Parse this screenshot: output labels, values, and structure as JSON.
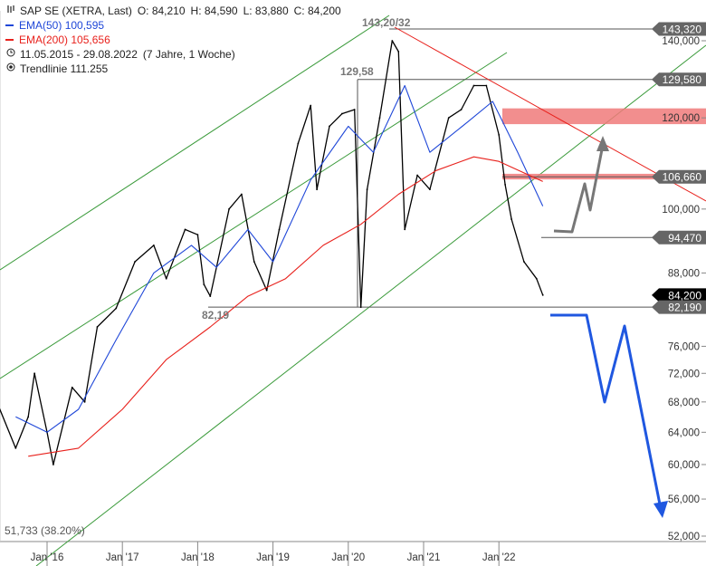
{
  "legend": {
    "title": "SAP SE (XETRA, Last)",
    "open": "O: 84,210",
    "high": "H: 84,590",
    "low": "L: 83,880",
    "close": "C: 84,200",
    "ema50_label": "EMA(50)",
    "ema50_value": "100,595",
    "ema200_label": "EMA(200)",
    "ema200_value": "105,656",
    "range": "11.05.2015 - 29.08.2022",
    "range_span": "(7 Jahre, 1 Woche)",
    "trend_label": "Trendlinie",
    "trend_value": "111.255",
    "ema50_color": "#1f47d8",
    "ema200_color": "#e8211c",
    "range_icon": "clock-icon",
    "trend_icon": "target-icon"
  },
  "chart_data": {
    "type": "line",
    "x_ticks": [
      "Jan '16",
      "Jan '17",
      "Jan '18",
      "Jan '19",
      "Jan '20",
      "Jan '21",
      "Jan '22"
    ],
    "y_ticks": [
      "140,000",
      "120,000",
      "100,000",
      "88,000",
      "76,000",
      "72,000",
      "68,000",
      "64,000",
      "60,000",
      "56,000",
      "52,000"
    ],
    "ylim": [
      52,
      145
    ],
    "y_scale": "log",
    "series": [
      {
        "name": "SAP SE (XETRA, Last)",
        "color": "#000000",
        "points": [
          [
            "2015-05",
            68
          ],
          [
            "2015-08",
            62
          ],
          [
            "2015-10",
            66
          ],
          [
            "2015-11",
            72
          ],
          [
            "2016-01",
            64
          ],
          [
            "2016-02",
            60
          ],
          [
            "2016-05",
            70
          ],
          [
            "2016-07",
            68
          ],
          [
            "2016-09",
            79
          ],
          [
            "2016-12",
            82
          ],
          [
            "2017-03",
            90
          ],
          [
            "2017-06",
            93
          ],
          [
            "2017-08",
            87
          ],
          [
            "2017-11",
            96
          ],
          [
            "2018-01",
            95
          ],
          [
            "2018-02",
            86
          ],
          [
            "2018-03",
            84
          ],
          [
            "2018-06",
            100
          ],
          [
            "2018-08",
            103
          ],
          [
            "2018-10",
            90
          ],
          [
            "2018-12",
            85
          ],
          [
            "2019-02",
            96
          ],
          [
            "2019-05",
            114
          ],
          [
            "2019-07",
            123
          ],
          [
            "2019-08",
            104
          ],
          [
            "2019-10",
            118
          ],
          [
            "2019-12",
            121
          ],
          [
            "2020-02",
            122
          ],
          [
            "2020-03",
            82.19
          ],
          [
            "2020-04",
            104
          ],
          [
            "2020-06",
            120
          ],
          [
            "2020-08",
            140
          ],
          [
            "2020-09",
            137
          ],
          [
            "2020-10",
            96
          ],
          [
            "2020-12",
            107
          ],
          [
            "2021-02",
            104
          ],
          [
            "2021-05",
            120
          ],
          [
            "2021-07",
            122
          ],
          [
            "2021-09",
            128
          ],
          [
            "2021-11",
            128
          ],
          [
            "2022-01",
            116
          ],
          [
            "2022-02",
            105
          ],
          [
            "2022-03",
            98
          ],
          [
            "2022-05",
            90
          ],
          [
            "2022-07",
            87
          ],
          [
            "2022-08",
            84.2
          ]
        ]
      },
      {
        "name": "EMA(50)",
        "color": "#1f47d8",
        "points": [
          [
            "2015-08",
            66
          ],
          [
            "2016-01",
            64
          ],
          [
            "2016-06",
            67
          ],
          [
            "2016-12",
            77
          ],
          [
            "2017-06",
            88
          ],
          [
            "2017-12",
            93
          ],
          [
            "2018-04",
            89
          ],
          [
            "2018-09",
            96
          ],
          [
            "2019-01",
            90
          ],
          [
            "2019-07",
            106
          ],
          [
            "2020-01",
            118
          ],
          [
            "2020-05",
            112
          ],
          [
            "2020-10",
            128
          ],
          [
            "2021-02",
            112
          ],
          [
            "2021-08",
            119
          ],
          [
            "2021-12",
            124
          ],
          [
            "2022-04",
            112
          ],
          [
            "2022-08",
            100.595
          ]
        ]
      },
      {
        "name": "EMA(200)",
        "color": "#e8211c",
        "points": [
          [
            "2015-10",
            61
          ],
          [
            "2016-06",
            62
          ],
          [
            "2017-01",
            67
          ],
          [
            "2017-08",
            74
          ],
          [
            "2018-03",
            79
          ],
          [
            "2018-09",
            84
          ],
          [
            "2019-03",
            87
          ],
          [
            "2019-09",
            93
          ],
          [
            "2020-03",
            97
          ],
          [
            "2020-09",
            103
          ],
          [
            "2021-03",
            108
          ],
          [
            "2021-09",
            111
          ],
          [
            "2022-01",
            110
          ],
          [
            "2022-08",
            105.656
          ]
        ]
      }
    ],
    "price_tags": [
      "143,320",
      "129,580",
      "106,660",
      "94,470",
      "84,200",
      "82,190"
    ],
    "annotations": [
      "143,20/32",
      "129,58",
      "82,19",
      "51,733 (38.20%)"
    ],
    "resistance_zones": [
      [
        118.5,
        122.3
      ],
      [
        106.1,
        107.3
      ]
    ],
    "scenario_arrows": [
      "up",
      "down"
    ],
    "grid": false
  }
}
